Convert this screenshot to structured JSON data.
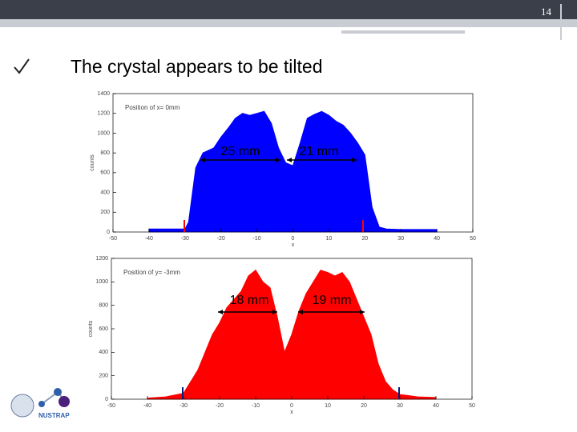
{
  "slide": {
    "page_number": "14",
    "title": "The crystal appears to be tilted",
    "logo_text": "NUSTRAP"
  },
  "chart_data": [
    {
      "type": "area",
      "title": "Position of x= 0mm",
      "x_label": "x",
      "y_label": "counts",
      "color": "#0000ff",
      "x": [
        -40,
        -35,
        -30,
        -29,
        -27,
        -25,
        -22,
        -20,
        -18,
        -16,
        -14,
        -12,
        -10,
        -8,
        -6,
        -4,
        -2,
        0,
        2,
        4,
        6,
        8,
        10,
        12,
        14,
        16,
        18,
        20,
        22,
        24,
        26,
        30,
        35,
        40
      ],
      "values": [
        30,
        30,
        30,
        100,
        650,
        800,
        850,
        960,
        1050,
        1150,
        1200,
        1180,
        1200,
        1220,
        1100,
        850,
        700,
        670,
        900,
        1150,
        1190,
        1220,
        1180,
        1120,
        1080,
        1000,
        900,
        780,
        250,
        50,
        30,
        25,
        25,
        25
      ],
      "xlim": [
        -50,
        50
      ],
      "xticks": [
        -50,
        -40,
        -30,
        -20,
        -10,
        0,
        10,
        20,
        30,
        40,
        50
      ],
      "ylim": [
        0,
        1400
      ],
      "yticks": [
        0,
        200,
        400,
        600,
        800,
        1000,
        1200,
        1400
      ],
      "annotations": [
        "25 mm",
        "21 mm"
      ]
    },
    {
      "type": "area",
      "title": "Position of y= -3mm",
      "x_label": "x",
      "y_label": "counts",
      "color": "#ff0000",
      "x": [
        -40,
        -35,
        -30,
        -28,
        -26,
        -24,
        -22,
        -20,
        -18,
        -16,
        -14,
        -12,
        -10,
        -8,
        -6,
        -4,
        -2,
        0,
        2,
        4,
        6,
        8,
        10,
        12,
        14,
        16,
        18,
        20,
        22,
        24,
        26,
        28,
        30,
        35,
        40
      ],
      "values": [
        10,
        20,
        50,
        150,
        250,
        400,
        550,
        650,
        780,
        850,
        920,
        1050,
        1100,
        1000,
        950,
        700,
        400,
        550,
        750,
        900,
        1000,
        1100,
        1080,
        1050,
        1080,
        1000,
        850,
        700,
        550,
        300,
        150,
        80,
        40,
        20,
        15
      ],
      "xlim": [
        -50,
        50
      ],
      "xticks": [
        -50,
        -40,
        -30,
        -20,
        -10,
        0,
        10,
        20,
        30,
        40,
        50
      ],
      "ylim": [
        0,
        1200
      ],
      "yticks": [
        0,
        200,
        400,
        600,
        800,
        1000,
        1200
      ],
      "annotations": [
        "18 mm",
        "19 mm"
      ]
    }
  ]
}
